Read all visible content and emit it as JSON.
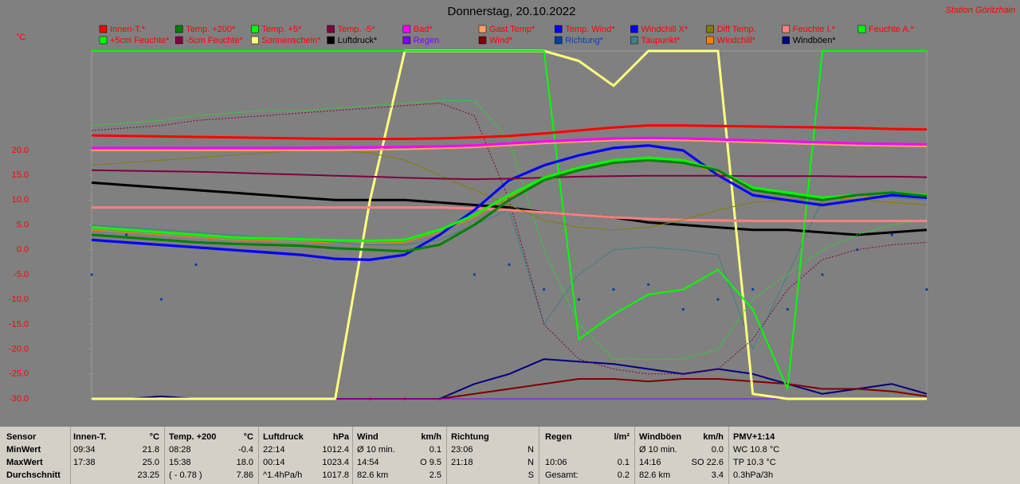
{
  "chart_data": {
    "type": "line",
    "title": "Donnerstag, 20.10.2022",
    "station": "Station Göritzhain",
    "y_label": "°C",
    "categories": [
      null,
      null,
      null,
      null,
      null,
      null,
      null,
      null,
      null,
      null,
      null,
      null,
      null,
      null,
      null,
      null,
      null,
      null,
      null,
      null,
      null,
      null,
      null,
      null,
      null
    ],
    "ylim": [
      -30,
      40
    ],
    "yticks": [
      {
        "value": 20,
        "label": "20.0"
      },
      {
        "value": 15,
        "label": "15.0"
      },
      {
        "value": 10,
        "label": "10.0"
      },
      {
        "value": 5,
        "label": "5.0"
      },
      {
        "value": 0,
        "label": "0.0"
      },
      {
        "value": -5,
        "label": "-5.0"
      },
      {
        "value": -10,
        "label": "-10.0"
      },
      {
        "value": -15,
        "label": "-15.0"
      },
      {
        "value": -20,
        "label": "-20.0"
      },
      {
        "value": -25,
        "label": "-25.0"
      },
      {
        "value": -30,
        "label": "-30.0"
      }
    ],
    "series": [
      {
        "name": "Innen-T.*",
        "color": "#ff0000",
        "style": "thick",
        "values": [
          23,
          22.9,
          22.8,
          22.7,
          22.6,
          22.5,
          22.4,
          22.3,
          22.3,
          22.3,
          22.4,
          22.6,
          22.9,
          23.4,
          24.0,
          24.6,
          25.0,
          25.0,
          24.9,
          24.8,
          24.7,
          24.6,
          24.5,
          24.3,
          24.2
        ]
      },
      {
        "name": "Temp. +200*",
        "color": "#008000",
        "style": "thick",
        "values": [
          3,
          2.5,
          2,
          1.5,
          1.2,
          1,
          0.8,
          0.3,
          0,
          -0.3,
          1,
          5,
          10,
          14,
          16,
          17.5,
          18,
          17.5,
          16,
          12,
          11,
          10,
          11,
          11.5,
          10.8
        ]
      },
      {
        "name": "Temp. +5*",
        "color": "#00ff00",
        "style": "thick",
        "values": [
          4.5,
          4,
          3.5,
          3,
          2.5,
          2.3,
          2.1,
          1.9,
          1.8,
          2,
          4,
          7,
          11,
          14.5,
          16.5,
          18,
          18.5,
          18,
          16,
          12.5,
          11.5,
          10.5,
          11,
          11.5,
          11
        ]
      },
      {
        "name": "Temp. -5*",
        "color": "#800040",
        "style": "medium",
        "values": [
          16,
          15.9,
          15.8,
          15.7,
          15.5,
          15.3,
          15.1,
          14.9,
          14.7,
          14.5,
          14.3,
          14.2,
          14.3,
          14.5,
          14.7,
          14.8,
          14.9,
          14.9,
          14.9,
          14.8,
          14.8,
          14.8,
          14.7,
          14.7,
          14.6
        ]
      },
      {
        "name": "Bad*",
        "color": "#ff00ff",
        "style": "thick",
        "values": [
          20.5,
          20.5,
          20.5,
          20.5,
          20.5,
          20.5,
          20.5,
          20.6,
          20.6,
          20.7,
          20.8,
          21.0,
          21.4,
          21.8,
          22.1,
          22.4,
          22.5,
          22.4,
          22.2,
          22,
          21.8,
          21.6,
          21.4,
          21.3,
          21.2
        ]
      },
      {
        "name": "Gast Temp*",
        "color": "#ffa060",
        "style": "medium",
        "values": [
          20,
          20,
          20,
          20,
          20,
          20,
          20,
          20,
          20.1,
          20.2,
          20.4,
          20.6,
          21,
          21.4,
          21.7,
          22,
          22.1,
          22,
          21.8,
          21.6,
          21.4,
          21.2,
          21,
          20.9,
          20.8
        ]
      },
      {
        "name": "Temp. Wind*",
        "color": "#0000ff",
        "style": "thick",
        "values": [
          2,
          1.5,
          1,
          0.5,
          0,
          -0.5,
          -1,
          -1.8,
          -2,
          -1,
          3,
          8,
          14,
          17,
          19,
          20.5,
          21,
          20,
          15,
          11,
          10,
          9,
          10,
          11,
          10.5
        ]
      },
      {
        "name": "Windchill X*",
        "color": "#0000ff",
        "style": "thin",
        "values": [
          1.8,
          1.3,
          0.8,
          0.3,
          -0.2,
          -0.7,
          -1.2,
          -2,
          -2.2,
          -1.2,
          2.8,
          7.8,
          13.8,
          16.8,
          18.8,
          20.3,
          20.8,
          19.8,
          14.8,
          10.8,
          9.8,
          8.8,
          9.8,
          10.8,
          10.3
        ]
      },
      {
        "name": "Diff Temp.",
        "color": "#808000",
        "style": "thin",
        "values": [
          17,
          17.5,
          18,
          18.5,
          19,
          19.5,
          20,
          20,
          19.5,
          18,
          15,
          12,
          9,
          6,
          4.5,
          4,
          4.5,
          6,
          8,
          9.5,
          10,
          10.5,
          10,
          9.5,
          9
        ]
      },
      {
        "name": "Feuchte I.*",
        "color": "#ff8080",
        "style": "thick",
        "values": [
          8.5,
          8.5,
          8.5,
          8.5,
          8.5,
          8.5,
          8.5,
          8.5,
          8.5,
          8.5,
          8.5,
          8.3,
          8,
          7.5,
          7,
          6.5,
          6.2,
          6,
          5.9,
          5.8,
          5.8,
          5.8,
          5.8,
          5.8,
          5.8
        ]
      },
      {
        "name": "Feuchte A.*",
        "color": "#00ff00",
        "style": "medium",
        "values": [
          40,
          40,
          40,
          40,
          40,
          40,
          40,
          40,
          40,
          40,
          40,
          40,
          40,
          40,
          -18,
          -13,
          -9,
          -8,
          -4,
          -12,
          -28,
          40,
          40,
          40,
          40
        ]
      },
      {
        "name": "+5cm Feuchte*",
        "color": "#00ff00",
        "style": "dotted",
        "values": [
          25,
          25.5,
          26,
          27,
          27.5,
          28,
          28,
          28.5,
          29,
          29.5,
          30,
          30,
          22,
          0,
          -15,
          -22,
          -22,
          -22,
          -20,
          -10,
          -5,
          0,
          3,
          5,
          6
        ]
      },
      {
        "name": "-5cm Feuchte*",
        "color": "#800040",
        "style": "dotted",
        "values": [
          24,
          24.5,
          25,
          26,
          26.5,
          27,
          27.5,
          28,
          28.5,
          29,
          29.5,
          27,
          10,
          -15,
          -22,
          -24,
          -25,
          -25,
          -24,
          -18,
          -8,
          -2,
          0,
          1,
          1.5
        ]
      },
      {
        "name": "Sonnenschein*",
        "color": "#ffff80",
        "style": "thick",
        "values": [
          -30,
          -30,
          -30,
          -30,
          -30,
          -30,
          -30,
          -30,
          10,
          40,
          40,
          40,
          40,
          40,
          38,
          33,
          40,
          40,
          40,
          -29,
          -30,
          -30,
          -30,
          -30,
          -30
        ]
      },
      {
        "name": "Luftdruck*",
        "color": "#000000",
        "style": "thick",
        "values": [
          13.5,
          13,
          12.5,
          12,
          11.5,
          11,
          10.5,
          10,
          10,
          10,
          9.5,
          9,
          8.5,
          7.5,
          7,
          6.5,
          5.5,
          5,
          4.5,
          4,
          4,
          3.5,
          3,
          3.5,
          4
        ]
      },
      {
        "name": "Regen",
        "color": "#8000ff",
        "style": "thin",
        "values": [
          -30,
          -30,
          -30,
          -30,
          -30,
          -30,
          -30,
          -30,
          -30,
          -30,
          -30,
          -30,
          -30,
          -30,
          -30,
          -30,
          -30,
          -30,
          -30,
          -30,
          -30,
          -30,
          -30,
          -30,
          -30
        ]
      },
      {
        "name": "Wind*",
        "color": "#800000",
        "style": "medium",
        "values": [
          -30,
          -30,
          -30,
          -30,
          -30,
          -30,
          -30,
          -30,
          -30,
          -30,
          -30,
          -29,
          -28,
          -27,
          -26,
          -26,
          -26.5,
          -26,
          -26,
          -26.5,
          -27,
          -28,
          -28,
          -28.5,
          -29.5
        ]
      },
      {
        "name": "Richtung*",
        "color": "#0040a0",
        "style": "dots",
        "values": [
          -5,
          3,
          -10,
          -3,
          -30,
          -30,
          -30,
          -30,
          -30,
          -30,
          -30,
          -5,
          -3,
          -8,
          -10,
          -8,
          -7,
          -12,
          -10,
          -8,
          -12,
          -5,
          0,
          3,
          -8
        ]
      },
      {
        "name": "Taupunkt*",
        "color": "#408080",
        "style": "thin",
        "values": [
          5,
          4.5,
          4,
          3.5,
          3,
          2.5,
          2,
          1.5,
          1,
          1,
          2,
          5,
          8,
          -15,
          -5,
          0,
          0.5,
          0,
          -1,
          -20,
          -5,
          10,
          11,
          10.5,
          10
        ]
      },
      {
        "name": "Windchill*",
        "color": "#ff8000",
        "style": "thin",
        "values": [
          4,
          3.5,
          3,
          2.5,
          2,
          1.8,
          1.6,
          1.4,
          1.3,
          1.5,
          3.5,
          6.5,
          10.5,
          14,
          16,
          17.5,
          18,
          17.5,
          15.5,
          12,
          11,
          10,
          10.5,
          11,
          10.5
        ]
      },
      {
        "name": "Windböen*",
        "color": "#000080",
        "style": "medium",
        "values": [
          -30,
          -30,
          -29.5,
          -30,
          -30,
          -30,
          -30,
          -30,
          -30,
          -30,
          -30,
          -27,
          -25,
          -22,
          -22.5,
          -23,
          -24,
          -25,
          -24,
          -25,
          -27,
          -29,
          -28,
          -27,
          -29
        ]
      }
    ]
  },
  "table": {
    "header": [
      [
        "Sensor"
      ],
      [
        "Innen-T.",
        "°C"
      ],
      [
        "Temp. +200",
        "°C"
      ],
      [
        "Luftdruck",
        "hPa"
      ],
      [
        "Wind",
        "km/h"
      ],
      [
        "Richtung"
      ],
      [
        "Regen",
        "l/m²"
      ],
      [
        "Windböen",
        "km/h"
      ],
      [
        "PMV+1:14"
      ]
    ],
    "rows": [
      {
        "label": "MinWert",
        "cells": [
          [
            "09:34",
            "21.8"
          ],
          [
            "08:28",
            "-0.4"
          ],
          [
            "22:14",
            "1012.4"
          ],
          [
            "Ø 10 min.",
            "0.1"
          ],
          [
            "23:06",
            "N"
          ],
          [],
          [
            "Ø 10 min.",
            "0.0"
          ],
          [
            "WC 10.8 °C"
          ]
        ]
      },
      {
        "label": "MaxWert",
        "cells": [
          [
            "17:38",
            "25.0"
          ],
          [
            "15:38",
            "18.0"
          ],
          [
            "00:14",
            "1023.4"
          ],
          [
            "14:54",
            "O 9.5"
          ],
          [
            "21:18",
            "N"
          ],
          [
            "10:06",
            "0.1"
          ],
          [
            "14:16",
            "SO 22.6"
          ],
          [
            "TP 10.3 °C"
          ]
        ]
      },
      {
        "label": "Durchschnitt",
        "cells": [
          [
            null,
            "23.25"
          ],
          [
            "( - 0.78 )",
            "7.86"
          ],
          [
            "^1.4hPa/h",
            "1017.8"
          ],
          [
            "82.6 km",
            "2.5"
          ],
          [
            null,
            "S"
          ],
          [
            "Gesamt:",
            "0.2"
          ],
          [
            "82.6 km",
            "3.4"
          ],
          [
            "0.3hPa/3h"
          ]
        ]
      }
    ]
  }
}
